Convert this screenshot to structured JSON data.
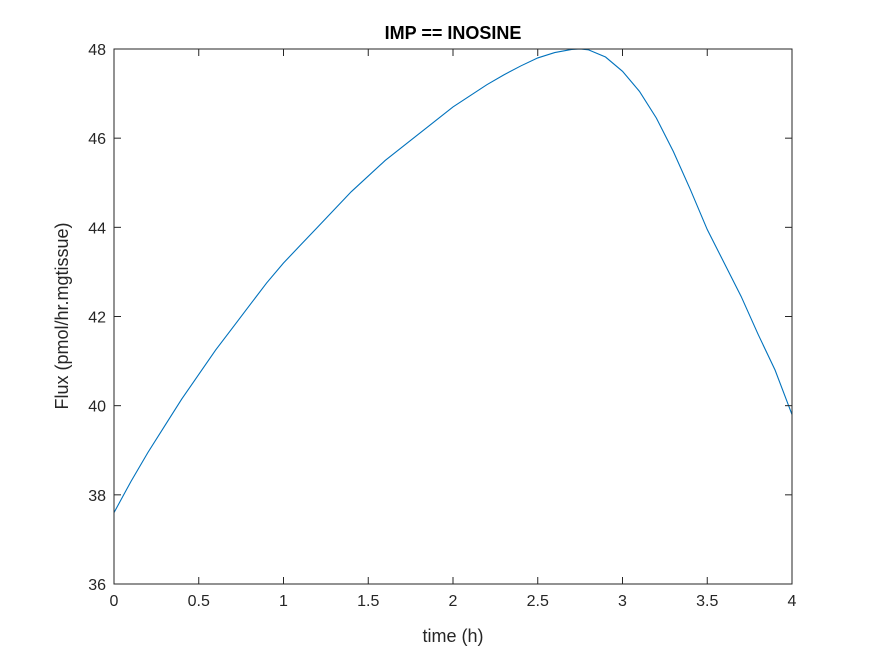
{
  "chart_data": {
    "type": "line",
    "title": "IMP == INOSINE",
    "xlabel": "time (h)",
    "ylabel": "Flux (pmol/hr.mgtissue)",
    "xlim": [
      0,
      4
    ],
    "ylim": [
      36,
      48
    ],
    "xticks": [
      0,
      0.5,
      1,
      1.5,
      2,
      2.5,
      3,
      3.5,
      4
    ],
    "yticks": [
      36,
      38,
      40,
      42,
      44,
      46,
      48
    ],
    "xtick_labels": [
      "0",
      "0.5",
      "1",
      "1.5",
      "2",
      "2.5",
      "3",
      "3.5",
      "4"
    ],
    "ytick_labels": [
      "36",
      "38",
      "40",
      "42",
      "44",
      "46",
      "48"
    ],
    "grid": false,
    "series": [
      {
        "color": "#0072BD",
        "x": [
          0,
          0.1,
          0.2,
          0.3,
          0.4,
          0.5,
          0.6,
          0.7,
          0.8,
          0.9,
          1.0,
          1.1,
          1.2,
          1.3,
          1.4,
          1.5,
          1.6,
          1.7,
          1.8,
          1.9,
          2.0,
          2.1,
          2.2,
          2.3,
          2.4,
          2.5,
          2.6,
          2.7,
          2.75,
          2.8,
          2.9,
          3.0,
          3.1,
          3.2,
          3.3,
          3.4,
          3.5,
          3.6,
          3.7,
          3.8,
          3.9,
          4.0
        ],
        "y": [
          37.6,
          38.3,
          38.95,
          39.55,
          40.15,
          40.7,
          41.25,
          41.75,
          42.25,
          42.75,
          43.2,
          43.6,
          44.0,
          44.4,
          44.8,
          45.15,
          45.5,
          45.8,
          46.1,
          46.4,
          46.7,
          46.95,
          47.2,
          47.42,
          47.62,
          47.8,
          47.92,
          47.99,
          48.0,
          47.98,
          47.82,
          47.5,
          47.05,
          46.45,
          45.7,
          44.85,
          43.95,
          43.2,
          42.45,
          41.6,
          40.8,
          39.8
        ]
      }
    ]
  }
}
